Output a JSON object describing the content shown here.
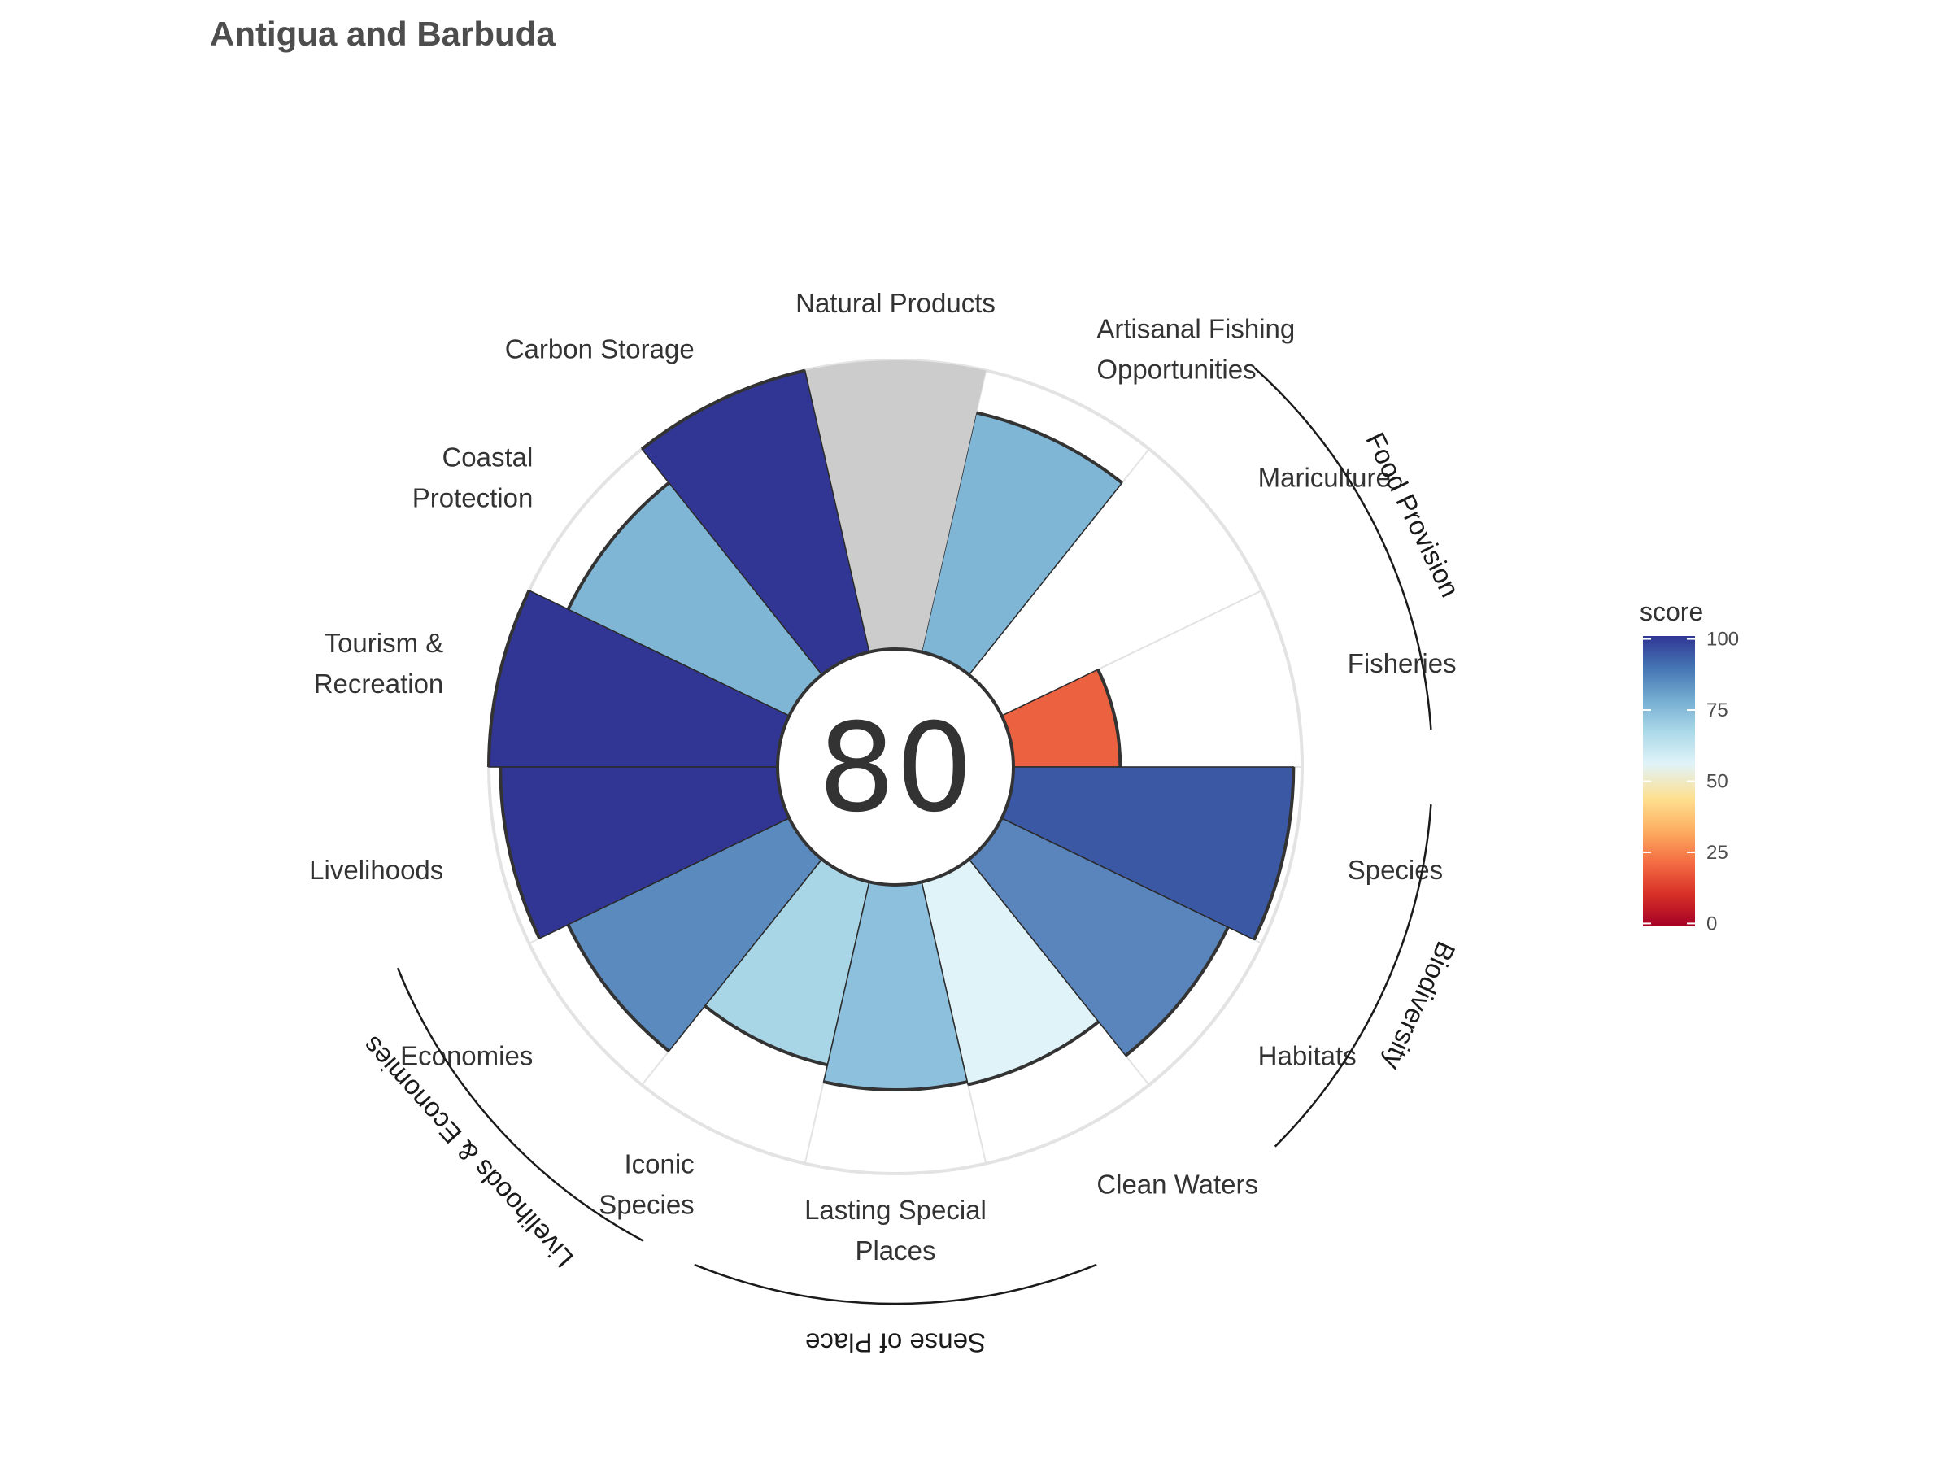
{
  "chart_data": {
    "type": "bar",
    "subtype": "rose / flower plot",
    "title": "Antigua and Barbuda",
    "overall_score": 80,
    "ylim": [
      0,
      100
    ],
    "grid": true,
    "legend": {
      "title": "score",
      "position": "right",
      "ticks": [
        0,
        25,
        50,
        75,
        100
      ],
      "colors": [
        "#a50026",
        "#d73027",
        "#f46d43",
        "#fdae61",
        "#fee090",
        "#e0f3f8",
        "#abd9e9",
        "#74add1",
        "#4575b4",
        "#313695"
      ]
    },
    "petals": [
      {
        "label": "Fisheries",
        "value": 37,
        "color": "#ec6140"
      },
      {
        "label": "Mariculture",
        "value": null,
        "color": null
      },
      {
        "label": "Artisanal Fishing Opportunities",
        "label_lines": [
          "Artisanal Fishing",
          "Opportunities"
        ],
        "value": 85,
        "color": "#7fb5d5"
      },
      {
        "label": "Natural Products",
        "value": 100,
        "color": "#cccccc",
        "no_outline": true
      },
      {
        "label": "Carbon Storage",
        "value": 100,
        "color": "#313695"
      },
      {
        "label": "Coastal Protection",
        "label_lines": [
          "Coastal",
          "Protection"
        ],
        "value": 85,
        "color": "#7fb5d5"
      },
      {
        "label": "Tourism & Recreation",
        "label_lines": [
          "Tourism &",
          "Recreation"
        ],
        "value": 100,
        "color": "#313695"
      },
      {
        "label": "Livelihoods",
        "value": 96,
        "color": "#313695"
      },
      {
        "label": "Economies",
        "value": 85,
        "color": "#5a8abe"
      },
      {
        "label": "Iconic Species",
        "label_lines": [
          "Iconic",
          "Species"
        ],
        "value": 65,
        "color": "#a9d6e6"
      },
      {
        "label": "Lasting Special Places",
        "label_lines": [
          "Lasting Special",
          "Places"
        ],
        "value": 71,
        "color": "#8cc0dc"
      },
      {
        "label": "Clean Waters",
        "value": 72,
        "color": "#e0f3f8"
      },
      {
        "label": "Habitats",
        "value": 87,
        "color": "#5985bc"
      },
      {
        "label": "Species",
        "value": 97,
        "color": "#3a58a4"
      }
    ],
    "groups": [
      {
        "label": "Food Provision"
      },
      {
        "label": "Biodiversity"
      },
      {
        "label": "Sense of Place"
      },
      {
        "label": "Livelihoods & Economies"
      }
    ]
  }
}
